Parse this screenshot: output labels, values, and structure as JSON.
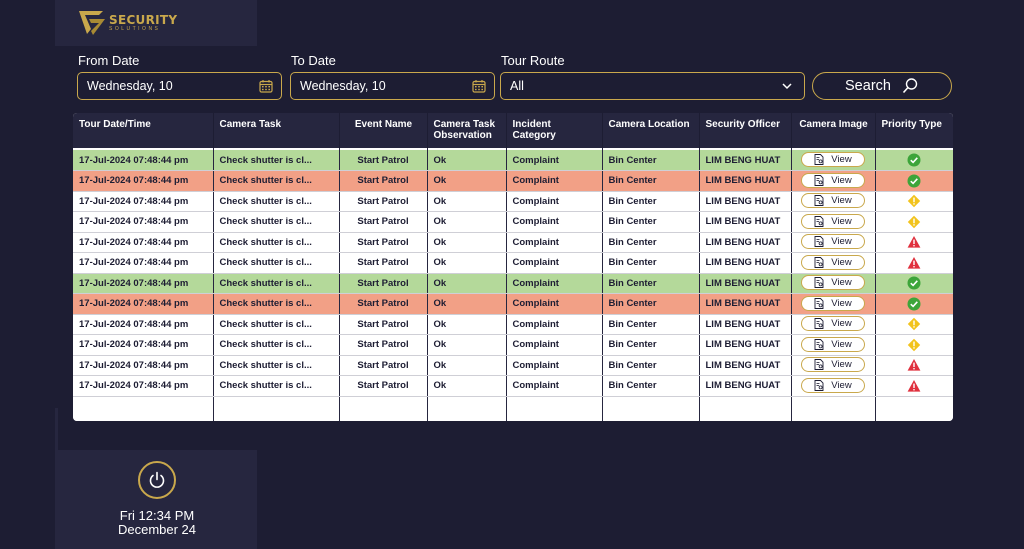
{
  "brand": {
    "name": "SECURITY",
    "tagline": "SOLUTIONS"
  },
  "filters": {
    "from_label": "From Date",
    "from_value": "Wednesday, 10",
    "to_label": "To Date",
    "to_value": "Wednesday, 10",
    "route_label": "Tour Route",
    "route_value": "All",
    "search_label": "Search"
  },
  "table": {
    "columns": [
      "Tour Date/Time",
      "Camera Task",
      "Event Name",
      "Camera Task Observation",
      "Incident Category",
      "Camera Location",
      "Security Officer",
      "Camera Image",
      "Priority Type"
    ],
    "view_label": "View",
    "rows": [
      {
        "datetime": "17-Jul-2024 07:48:44 pm",
        "task": "Check shutter is cl...",
        "event": "Start Patrol",
        "observation": "Ok",
        "category": "Complaint",
        "location": "Bin Center",
        "officer": "LIM BENG HUAT",
        "priority": "success",
        "status": "green"
      },
      {
        "datetime": "17-Jul-2024 07:48:44 pm",
        "task": "Check shutter is cl...",
        "event": "Start Patrol",
        "observation": "Ok",
        "category": "Complaint",
        "location": "Bin Center",
        "officer": "LIM BENG HUAT",
        "priority": "success",
        "status": "red"
      },
      {
        "datetime": "17-Jul-2024 07:48:44 pm",
        "task": "Check shutter is cl...",
        "event": "Start Patrol",
        "observation": "Ok",
        "category": "Complaint",
        "location": "Bin Center",
        "officer": "LIM BENG HUAT",
        "priority": "warning",
        "status": "white"
      },
      {
        "datetime": "17-Jul-2024 07:48:44 pm",
        "task": "Check shutter is cl...",
        "event": "Start Patrol",
        "observation": "Ok",
        "category": "Complaint",
        "location": "Bin Center",
        "officer": "LIM BENG HUAT",
        "priority": "warning",
        "status": "white"
      },
      {
        "datetime": "17-Jul-2024 07:48:44 pm",
        "task": "Check shutter is cl...",
        "event": "Start Patrol",
        "observation": "Ok",
        "category": "Complaint",
        "location": "Bin Center",
        "officer": "LIM BENG HUAT",
        "priority": "alert",
        "status": "white"
      },
      {
        "datetime": "17-Jul-2024 07:48:44 pm",
        "task": "Check shutter is cl...",
        "event": "Start Patrol",
        "observation": "Ok",
        "category": "Complaint",
        "location": "Bin Center",
        "officer": "LIM BENG HUAT",
        "priority": "alert",
        "status": "white"
      },
      {
        "datetime": "17-Jul-2024 07:48:44 pm",
        "task": "Check shutter is cl...",
        "event": "Start Patrol",
        "observation": "Ok",
        "category": "Complaint",
        "location": "Bin Center",
        "officer": "LIM BENG HUAT",
        "priority": "success",
        "status": "green"
      },
      {
        "datetime": "17-Jul-2024 07:48:44 pm",
        "task": "Check shutter is cl...",
        "event": "Start Patrol",
        "observation": "Ok",
        "category": "Complaint",
        "location": "Bin Center",
        "officer": "LIM BENG HUAT",
        "priority": "success",
        "status": "red"
      },
      {
        "datetime": "17-Jul-2024 07:48:44 pm",
        "task": "Check shutter is cl...",
        "event": "Start Patrol",
        "observation": "Ok",
        "category": "Complaint",
        "location": "Bin Center",
        "officer": "LIM BENG HUAT",
        "priority": "warning",
        "status": "white"
      },
      {
        "datetime": "17-Jul-2024 07:48:44 pm",
        "task": "Check shutter is cl...",
        "event": "Start Patrol",
        "observation": "Ok",
        "category": "Complaint",
        "location": "Bin Center",
        "officer": "LIM BENG HUAT",
        "priority": "warning",
        "status": "white"
      },
      {
        "datetime": "17-Jul-2024 07:48:44 pm",
        "task": "Check shutter is cl...",
        "event": "Start Patrol",
        "observation": "Ok",
        "category": "Complaint",
        "location": "Bin Center",
        "officer": "LIM BENG HUAT",
        "priority": "alert",
        "status": "white"
      },
      {
        "datetime": "17-Jul-2024 07:48:44 pm",
        "task": "Check shutter is cl...",
        "event": "Start Patrol",
        "observation": "Ok",
        "category": "Complaint",
        "location": "Bin Center",
        "officer": "LIM BENG HUAT",
        "priority": "alert",
        "status": "white"
      }
    ]
  },
  "clock": {
    "time": "Fri 12:34 PM",
    "date": "December 24"
  },
  "colors": {
    "accent": "#c9a84c",
    "background": "#1d1d33",
    "panel": "#26263f",
    "row_green": "#b4d99a",
    "row_red": "#f2a086",
    "success": "#3da53a",
    "warning": "#f2c31c",
    "alert": "#e0303e"
  },
  "icons": {
    "logo": "shield-check-logo",
    "calendar": "calendar-icon",
    "dropdown": "chevron-down-icon",
    "search": "magnifier-icon",
    "view": "document-view-icon",
    "power": "power-icon"
  }
}
